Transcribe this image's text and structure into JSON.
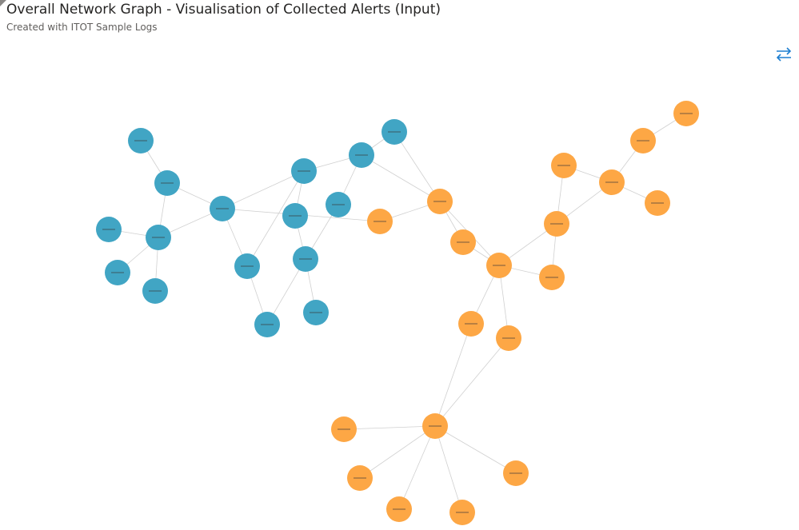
{
  "header": {
    "title": "Overall Network Graph - Visualisation of Collected Alerts (Input)",
    "subtitle": "Created with ITOT Sample Logs"
  }
}
